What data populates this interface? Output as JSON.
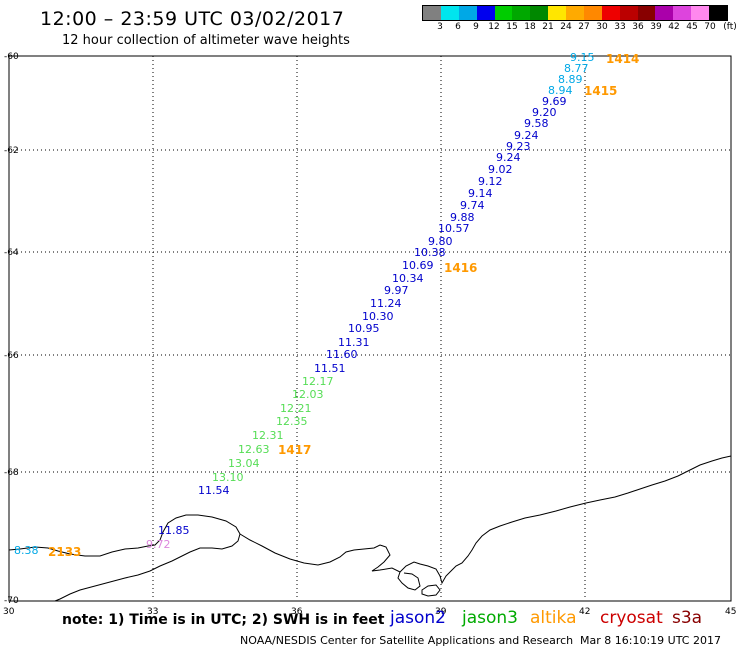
{
  "header": {
    "title": "12:00 – 23:59 UTC 03/02/2017",
    "subtitle": "12 hour collection of altimeter wave heights"
  },
  "color_scale": {
    "colors": [
      "#808080",
      "#00e5ee",
      "#00a8e6",
      "#0000ee",
      "#00cc00",
      "#00a800",
      "#008800",
      "#ffe600",
      "#ffaa00",
      "#ff8800",
      "#ee0000",
      "#bb0000",
      "#880000",
      "#aa00aa",
      "#dd44dd",
      "#ff88ee",
      "#000000"
    ],
    "labels": [
      "3",
      "6",
      "9",
      "12",
      "15",
      "18",
      "21",
      "24",
      "27",
      "30",
      "33",
      "36",
      "39",
      "42",
      "45",
      "70",
      "(ft)"
    ],
    "unit": "(ft)"
  },
  "map": {
    "lat_labels": [
      "-60",
      "-62",
      "-64",
      "-66",
      "-68",
      "-70"
    ],
    "lon_labels": [
      "30",
      "33",
      "36",
      "39",
      "42",
      "45"
    ]
  },
  "track_values": [
    {
      "text": "9.15",
      "color": "#00a8e6"
    },
    {
      "text": "8.77",
      "color": "#00a8e6"
    },
    {
      "text": "8.89",
      "color": "#00a8e6"
    },
    {
      "text": "8.94",
      "color": "#00a8e6"
    },
    {
      "text": "9.69",
      "color": "#0000cc"
    },
    {
      "text": "9.20",
      "color": "#0000cc"
    },
    {
      "text": "9.58",
      "color": "#0000cc"
    },
    {
      "text": "9.24",
      "color": "#0000cc"
    },
    {
      "text": "9.23",
      "color": "#0000cc"
    },
    {
      "text": "9.24",
      "color": "#0000cc"
    },
    {
      "text": "9.02",
      "color": "#0000cc"
    },
    {
      "text": "9.12",
      "color": "#0000cc"
    },
    {
      "text": "9.14",
      "color": "#0000cc"
    },
    {
      "text": "9.74",
      "color": "#0000cc"
    },
    {
      "text": "9.88",
      "color": "#0000cc"
    },
    {
      "text": "10.57",
      "color": "#0000cc"
    },
    {
      "text": "9.80",
      "color": "#0000cc"
    },
    {
      "text": "10.38",
      "color": "#0000cc"
    },
    {
      "text": "10.69",
      "color": "#0000cc"
    },
    {
      "text": "10.34",
      "color": "#0000cc"
    },
    {
      "text": "9.97",
      "color": "#0000cc"
    },
    {
      "text": "11.24",
      "color": "#0000cc"
    },
    {
      "text": "10.30",
      "color": "#0000cc"
    },
    {
      "text": "10.95",
      "color": "#0000cc"
    },
    {
      "text": "11.31",
      "color": "#0000cc"
    },
    {
      "text": "11.60",
      "color": "#0000cc"
    },
    {
      "text": "11.51",
      "color": "#0000cc"
    },
    {
      "text": "12.17",
      "color": "#55dd55"
    },
    {
      "text": "12.03",
      "color": "#55dd55"
    },
    {
      "text": "12.21",
      "color": "#55dd55"
    },
    {
      "text": "12.35",
      "color": "#55dd55"
    },
    {
      "text": "12.31",
      "color": "#55dd55"
    },
    {
      "text": "12.63",
      "color": "#55dd55"
    },
    {
      "text": "13.04",
      "color": "#55dd55"
    },
    {
      "text": "13.10",
      "color": "#55dd55"
    },
    {
      "text": "11.54",
      "color": "#0000cc"
    },
    {
      "text": "11.85",
      "color": "#0000cc"
    },
    {
      "text": "9.72",
      "color": "#dd88dd"
    },
    {
      "text": "8.38",
      "color": "#00a8e6"
    }
  ],
  "time_labels": [
    {
      "text": "1414",
      "color": "#ff9900"
    },
    {
      "text": "1415",
      "color": "#ff9900"
    },
    {
      "text": "1416",
      "color": "#ff9900"
    },
    {
      "text": "1417",
      "color": "#ff9900"
    },
    {
      "text": "2133",
      "color": "#990000"
    }
  ],
  "footer": {
    "note": "note:  1) Time is in UTC;  2) SWH is in feet",
    "legend": [
      {
        "text": "jason2",
        "color": "#0000cc"
      },
      {
        "text": "jason3",
        "color": "#00aa00"
      },
      {
        "text": "altika",
        "color": "#ff9900"
      },
      {
        "text": "cryosat",
        "color": "#cc0000"
      },
      {
        "text": "s3a",
        "color": "#880000"
      }
    ],
    "credit": "NOAA/NESDIS Center for Satellite Applications and Research",
    "timestamp": "Mar  8 16:10:19 UTC 2017"
  }
}
